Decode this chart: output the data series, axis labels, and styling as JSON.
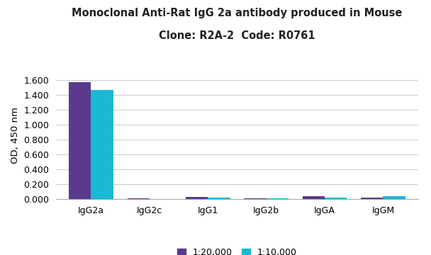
{
  "title_line1": "Monoclonal Anti-Rat IgG 2a antibody produced in Mouse",
  "title_line2": "Clone: R2A-2  Code: R0761",
  "categories": [
    "IgG2a",
    "IgG2c",
    "IgG1",
    "IgG2b",
    "IgGA",
    "IgGM"
  ],
  "series1_label": "1:20,000",
  "series2_label": "1:10,000",
  "series1_color": "#5b3a8c",
  "series2_color": "#1ab8d4",
  "series1_values": [
    1.575,
    0.003,
    0.022,
    0.003,
    0.032,
    0.018
  ],
  "series2_values": [
    1.47,
    0.002,
    0.02,
    0.008,
    0.02,
    0.038
  ],
  "ylabel": "OD, 450 nm",
  "ylim": [
    0,
    1.72
  ],
  "yticks": [
    0.0,
    0.2,
    0.4,
    0.6,
    0.8,
    1.0,
    1.2,
    1.4,
    1.6
  ],
  "ytick_labels": [
    "0.000",
    "0.200",
    "0.400",
    "0.600",
    "0.800",
    "1.000",
    "1.200",
    "1.400",
    "1.600"
  ],
  "bar_width": 0.38,
  "background_color": "#ffffff",
  "grid_color": "#cccccc",
  "title_fontsize": 10.5,
  "axis_fontsize": 9.5,
  "tick_fontsize": 9,
  "legend_fontsize": 9
}
